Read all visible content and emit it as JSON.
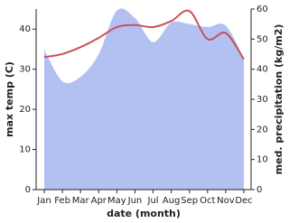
{
  "chart_data": {
    "type": "line-area",
    "x_label": "date (month)",
    "y_label": "max temp (C)",
    "y2_label": "med. precipitation (kg/m2)",
    "categories": [
      "Jan",
      "Feb",
      "Mar",
      "Apr",
      "May",
      "Jun",
      "Jul",
      "Aug",
      "Sep",
      "Oct",
      "Nov",
      "Dec"
    ],
    "ylim": [
      0,
      45
    ],
    "yticks": [
      0,
      10,
      20,
      30,
      40
    ],
    "y2lim": [
      0,
      60
    ],
    "y2ticks": [
      0,
      10,
      20,
      30,
      40,
      50,
      60
    ],
    "series": [
      {
        "name": "max temp",
        "color": "#c9525c",
        "kind": "line",
        "axis": "y",
        "values": [
          33,
          33.8,
          35.5,
          37.8,
          40.5,
          41,
          40.5,
          42,
          44.5,
          37.5,
          39,
          32.5
        ]
      },
      {
        "name": "med. precipitation",
        "color": "#b3c1f2",
        "kind": "area",
        "axis": "y2",
        "values": [
          46.5,
          36,
          37.5,
          45,
          59.5,
          57,
          49,
          55.5,
          55,
          54,
          54.5,
          43.5
        ]
      }
    ]
  }
}
